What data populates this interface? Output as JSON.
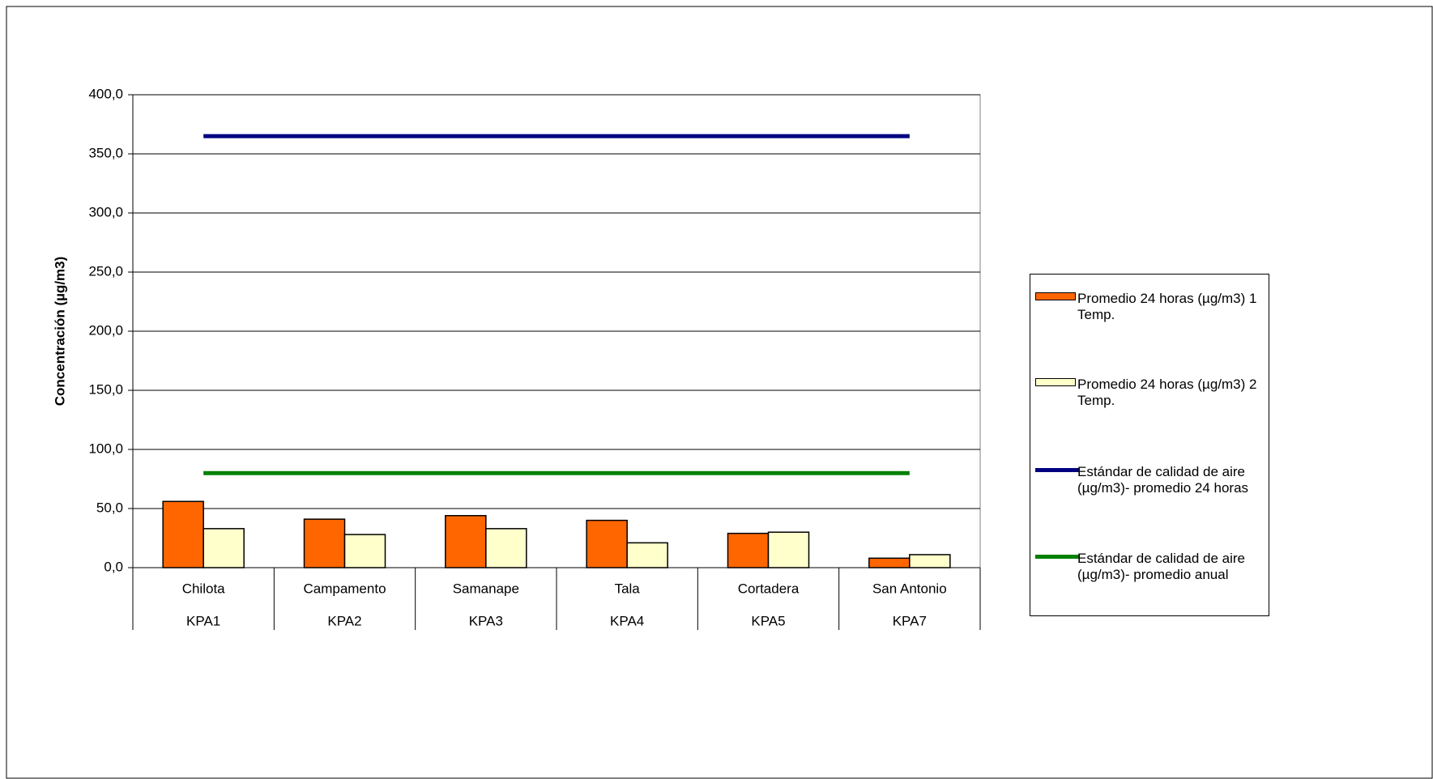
{
  "chart_data": {
    "type": "bar",
    "y_label": "Concentración (µg/m3)",
    "categories": [
      "Chilota",
      "Campamento",
      "Samanape",
      "Tala",
      "Cortadera",
      "San Antonio"
    ],
    "category_codes": [
      "KPA1",
      "KPA2",
      "KPA3",
      "KPA4",
      "KPA5",
      "KPA7"
    ],
    "ylim": [
      0,
      400
    ],
    "yticks": [
      {
        "value": 0,
        "label": "0,0"
      },
      {
        "value": 50,
        "label": "50,0"
      },
      {
        "value": 100,
        "label": "100,0"
      },
      {
        "value": 150,
        "label": "150,0"
      },
      {
        "value": 200,
        "label": "200,0"
      },
      {
        "value": 250,
        "label": "250,0"
      },
      {
        "value": 300,
        "label": "300,0"
      },
      {
        "value": 350,
        "label": "350,0"
      },
      {
        "value": 400,
        "label": "400,0"
      }
    ],
    "grid": true,
    "legend": "right",
    "series": [
      {
        "name": "Promedio 24 horas (µg/m3) 1 Temp.",
        "type": "bar",
        "color": "#ff6600",
        "values": [
          56,
          41,
          44,
          40,
          29,
          8
        ]
      },
      {
        "name": "Promedio 24 horas (µg/m3) 2 Temp.",
        "type": "bar",
        "color": "#ffffcc",
        "values": [
          33,
          28,
          33,
          21,
          30,
          11
        ]
      },
      {
        "name": "Estándar de calidad de aire (µg/m3)- promedio 24 horas",
        "type": "line",
        "color": "#000080",
        "values": [
          365,
          365,
          365,
          365,
          365,
          365
        ]
      },
      {
        "name": "Estándar de calidad de aire (µg/m3)- promedio anual",
        "type": "line",
        "color": "#008000",
        "values": [
          80,
          80,
          80,
          80,
          80,
          80
        ]
      }
    ]
  }
}
